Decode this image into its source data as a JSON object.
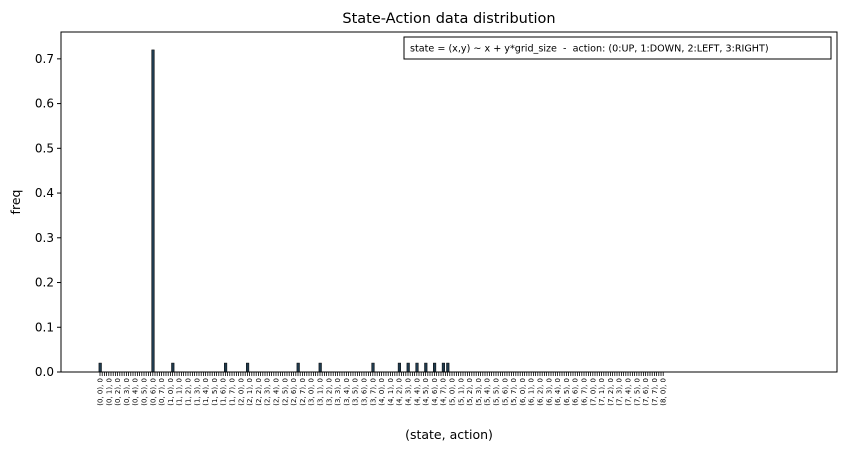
{
  "chart_data": {
    "type": "bar",
    "title": "State-Action data distribution",
    "xlabel": "(state, action)",
    "ylabel": "freq",
    "ylim": [
      0,
      0.76
    ],
    "yticks": [
      0.0,
      0.1,
      0.2,
      0.3,
      0.4,
      0.5,
      0.6,
      0.7
    ],
    "ytick_labels": [
      "0.0",
      "0.1",
      "0.2",
      "0.3",
      "0.4",
      "0.5",
      "0.6",
      "0.7"
    ],
    "annotation": "state = (x,y) ~ x + y*grid_size  -  action: (0:UP, 1:DOWN, 2:LEFT, 3:RIGHT)",
    "annotation_placement": "top-right",
    "grid": false,
    "bar_color": "#1f3a4d",
    "categories": [
      "(0, 0), 0",
      "(0, 1), 0",
      "(0, 2), 0",
      "(0, 3), 0",
      "(0, 4), 0",
      "(0, 5), 0",
      "(0, 6), 0",
      "(0, 7), 0",
      "(1, 0), 0",
      "(1, 1), 0",
      "(1, 2), 0",
      "(1, 3), 0",
      "(1, 4), 0",
      "(1, 5), 0",
      "(1, 6), 0",
      "(1, 7), 0",
      "(2, 0), 0",
      "(2, 1), 0",
      "(2, 2), 0",
      "(2, 3), 0",
      "(2, 4), 0",
      "(2, 5), 0",
      "(2, 6), 0",
      "(2, 7), 0",
      "(3, 0), 0",
      "(3, 1), 0",
      "(3, 2), 0",
      "(3, 3), 0",
      "(3, 4), 0",
      "(3, 5), 0",
      "(3, 6), 0",
      "(3, 7), 0",
      "(4, 0), 0",
      "(4, 1), 0",
      "(4, 2), 0",
      "(4, 3), 0",
      "(4, 4), 0",
      "(4, 5), 0",
      "(4, 6), 0",
      "(4, 7), 0",
      "(5, 0), 0",
      "(5, 1), 0",
      "(5, 2), 0",
      "(5, 3), 0",
      "(5, 4), 0",
      "(5, 5), 0",
      "(5, 6), 0",
      "(5, 7), 0",
      "(6, 0), 0",
      "(6, 1), 0",
      "(6, 2), 0",
      "(6, 3), 0",
      "(6, 4), 0",
      "(6, 5), 0",
      "(6, 6), 0",
      "(6, 7), 0",
      "(7, 0), 0",
      "(7, 1), 0",
      "(7, 2), 0",
      "(7, 3), 0",
      "(7, 4), 0",
      "(7, 5), 0",
      "(7, 6), 0",
      "(7, 7), 0",
      "(8, 0), 0"
    ],
    "bars": [
      {
        "index": 0,
        "value": 0.02
      },
      {
        "index": 24,
        "value": 0.72
      },
      {
        "index": 33,
        "value": 0.02
      },
      {
        "index": 57,
        "value": 0.02
      },
      {
        "index": 67,
        "value": 0.02
      },
      {
        "index": 90,
        "value": 0.02
      },
      {
        "index": 100,
        "value": 0.02
      },
      {
        "index": 124,
        "value": 0.02
      },
      {
        "index": 136,
        "value": 0.02
      },
      {
        "index": 140,
        "value": 0.02
      },
      {
        "index": 144,
        "value": 0.02
      },
      {
        "index": 148,
        "value": 0.02
      },
      {
        "index": 152,
        "value": 0.02
      },
      {
        "index": 156,
        "value": 0.02
      },
      {
        "index": 158,
        "value": 0.02
      }
    ]
  }
}
